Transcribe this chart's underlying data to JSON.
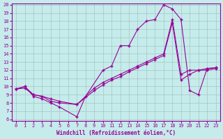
{
  "xlabel": "Windchill (Refroidissement éolien,°C)",
  "bg_color": "#c5ecea",
  "line_color": "#990099",
  "grid_color": "#9bbcbc",
  "xlim": [
    -0.5,
    23.5
  ],
  "ylim": [
    5.8,
    20.2
  ],
  "xticks": [
    0,
    1,
    2,
    3,
    4,
    5,
    6,
    7,
    8,
    9,
    10,
    11,
    12,
    13,
    14,
    15,
    16,
    17,
    18,
    19,
    20,
    21,
    22,
    23
  ],
  "yticks": [
    6,
    7,
    8,
    9,
    10,
    11,
    12,
    13,
    14,
    15,
    16,
    17,
    18,
    19,
    20
  ],
  "line1_x": [
    0,
    1,
    2,
    3,
    4,
    5,
    7,
    8,
    10,
    11,
    12,
    13,
    14,
    15,
    16,
    17,
    18,
    19,
    20,
    21,
    22,
    23
  ],
  "line1_y": [
    9.7,
    10.0,
    8.8,
    8.5,
    8.0,
    7.5,
    6.3,
    8.8,
    12.0,
    12.5,
    15.0,
    15.0,
    17.0,
    18.0,
    18.2,
    20.0,
    19.5,
    18.2,
    9.5,
    9.0,
    12.2,
    12.3
  ],
  "line2_x": [
    0,
    1,
    2,
    3,
    4,
    5,
    7,
    9,
    10,
    11,
    12,
    13,
    14,
    15,
    16,
    17,
    18,
    19,
    20,
    21,
    22,
    23
  ],
  "line2_y": [
    9.7,
    10.0,
    9.0,
    8.8,
    8.5,
    8.2,
    7.8,
    9.8,
    10.5,
    11.0,
    11.5,
    12.0,
    12.5,
    13.0,
    13.5,
    14.0,
    18.2,
    11.5,
    12.0,
    12.0,
    12.2,
    12.3
  ],
  "line3_x": [
    0,
    1,
    2,
    3,
    4,
    5,
    7,
    9,
    10,
    11,
    12,
    13,
    14,
    15,
    16,
    17,
    18,
    19,
    20,
    21,
    22,
    23
  ],
  "line3_y": [
    9.7,
    9.8,
    9.0,
    8.8,
    8.2,
    8.0,
    7.8,
    9.5,
    10.2,
    10.8,
    11.2,
    11.8,
    12.3,
    12.8,
    13.3,
    13.8,
    17.8,
    10.8,
    11.5,
    12.0,
    12.0,
    12.2
  ]
}
